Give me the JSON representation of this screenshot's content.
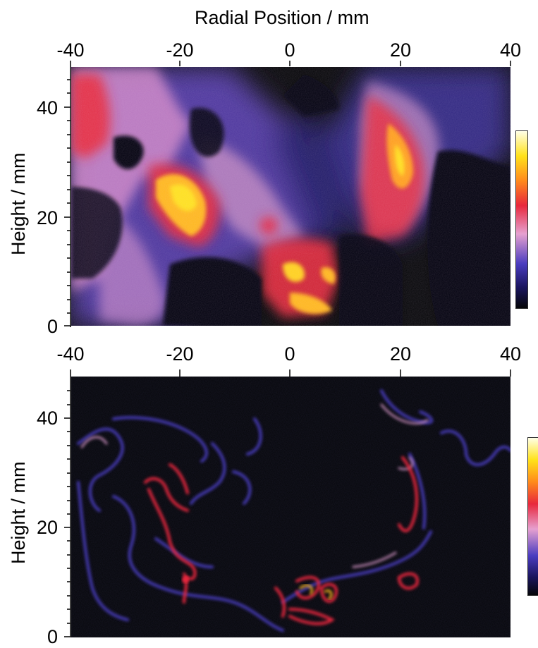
{
  "top_axis_title": "Radial Position / mm",
  "panels": [
    {
      "id": "top",
      "x_ticks": [
        "-40",
        "-20",
        "0",
        "20",
        "40"
      ],
      "y_ticks": [
        "40",
        "20",
        "0"
      ],
      "y_label": "Height / mm"
    },
    {
      "id": "bottom",
      "x_ticks": [
        "-40",
        "-20",
        "0",
        "20",
        "40"
      ],
      "y_ticks": [
        "40",
        "20",
        "0"
      ],
      "y_label": "Height / mm"
    }
  ],
  "colormap": [
    "#050608",
    "#1b1660",
    "#4a3cc0",
    "#e6a0d0",
    "#e8283c",
    "#ff8a1c",
    "#ffe21a",
    "#ffffe8"
  ],
  "chart_data": [
    {
      "type": "heatmap",
      "title": "",
      "xlabel": "Radial Position / mm",
      "ylabel": "Height / mm",
      "xlim": [
        -40,
        40
      ],
      "ylim": [
        0,
        47
      ],
      "x_ticks": [
        -40,
        -20,
        0,
        20,
        40
      ],
      "y_ticks": [
        0,
        20,
        40
      ]
    },
    {
      "type": "heatmap",
      "title": "",
      "xlabel": "",
      "ylabel": "Height / mm",
      "xlim": [
        -40,
        40
      ],
      "ylim": [
        0,
        47
      ],
      "x_ticks": [
        -40,
        -20,
        0,
        20,
        40
      ],
      "y_ticks": [
        0,
        20,
        40
      ]
    }
  ]
}
